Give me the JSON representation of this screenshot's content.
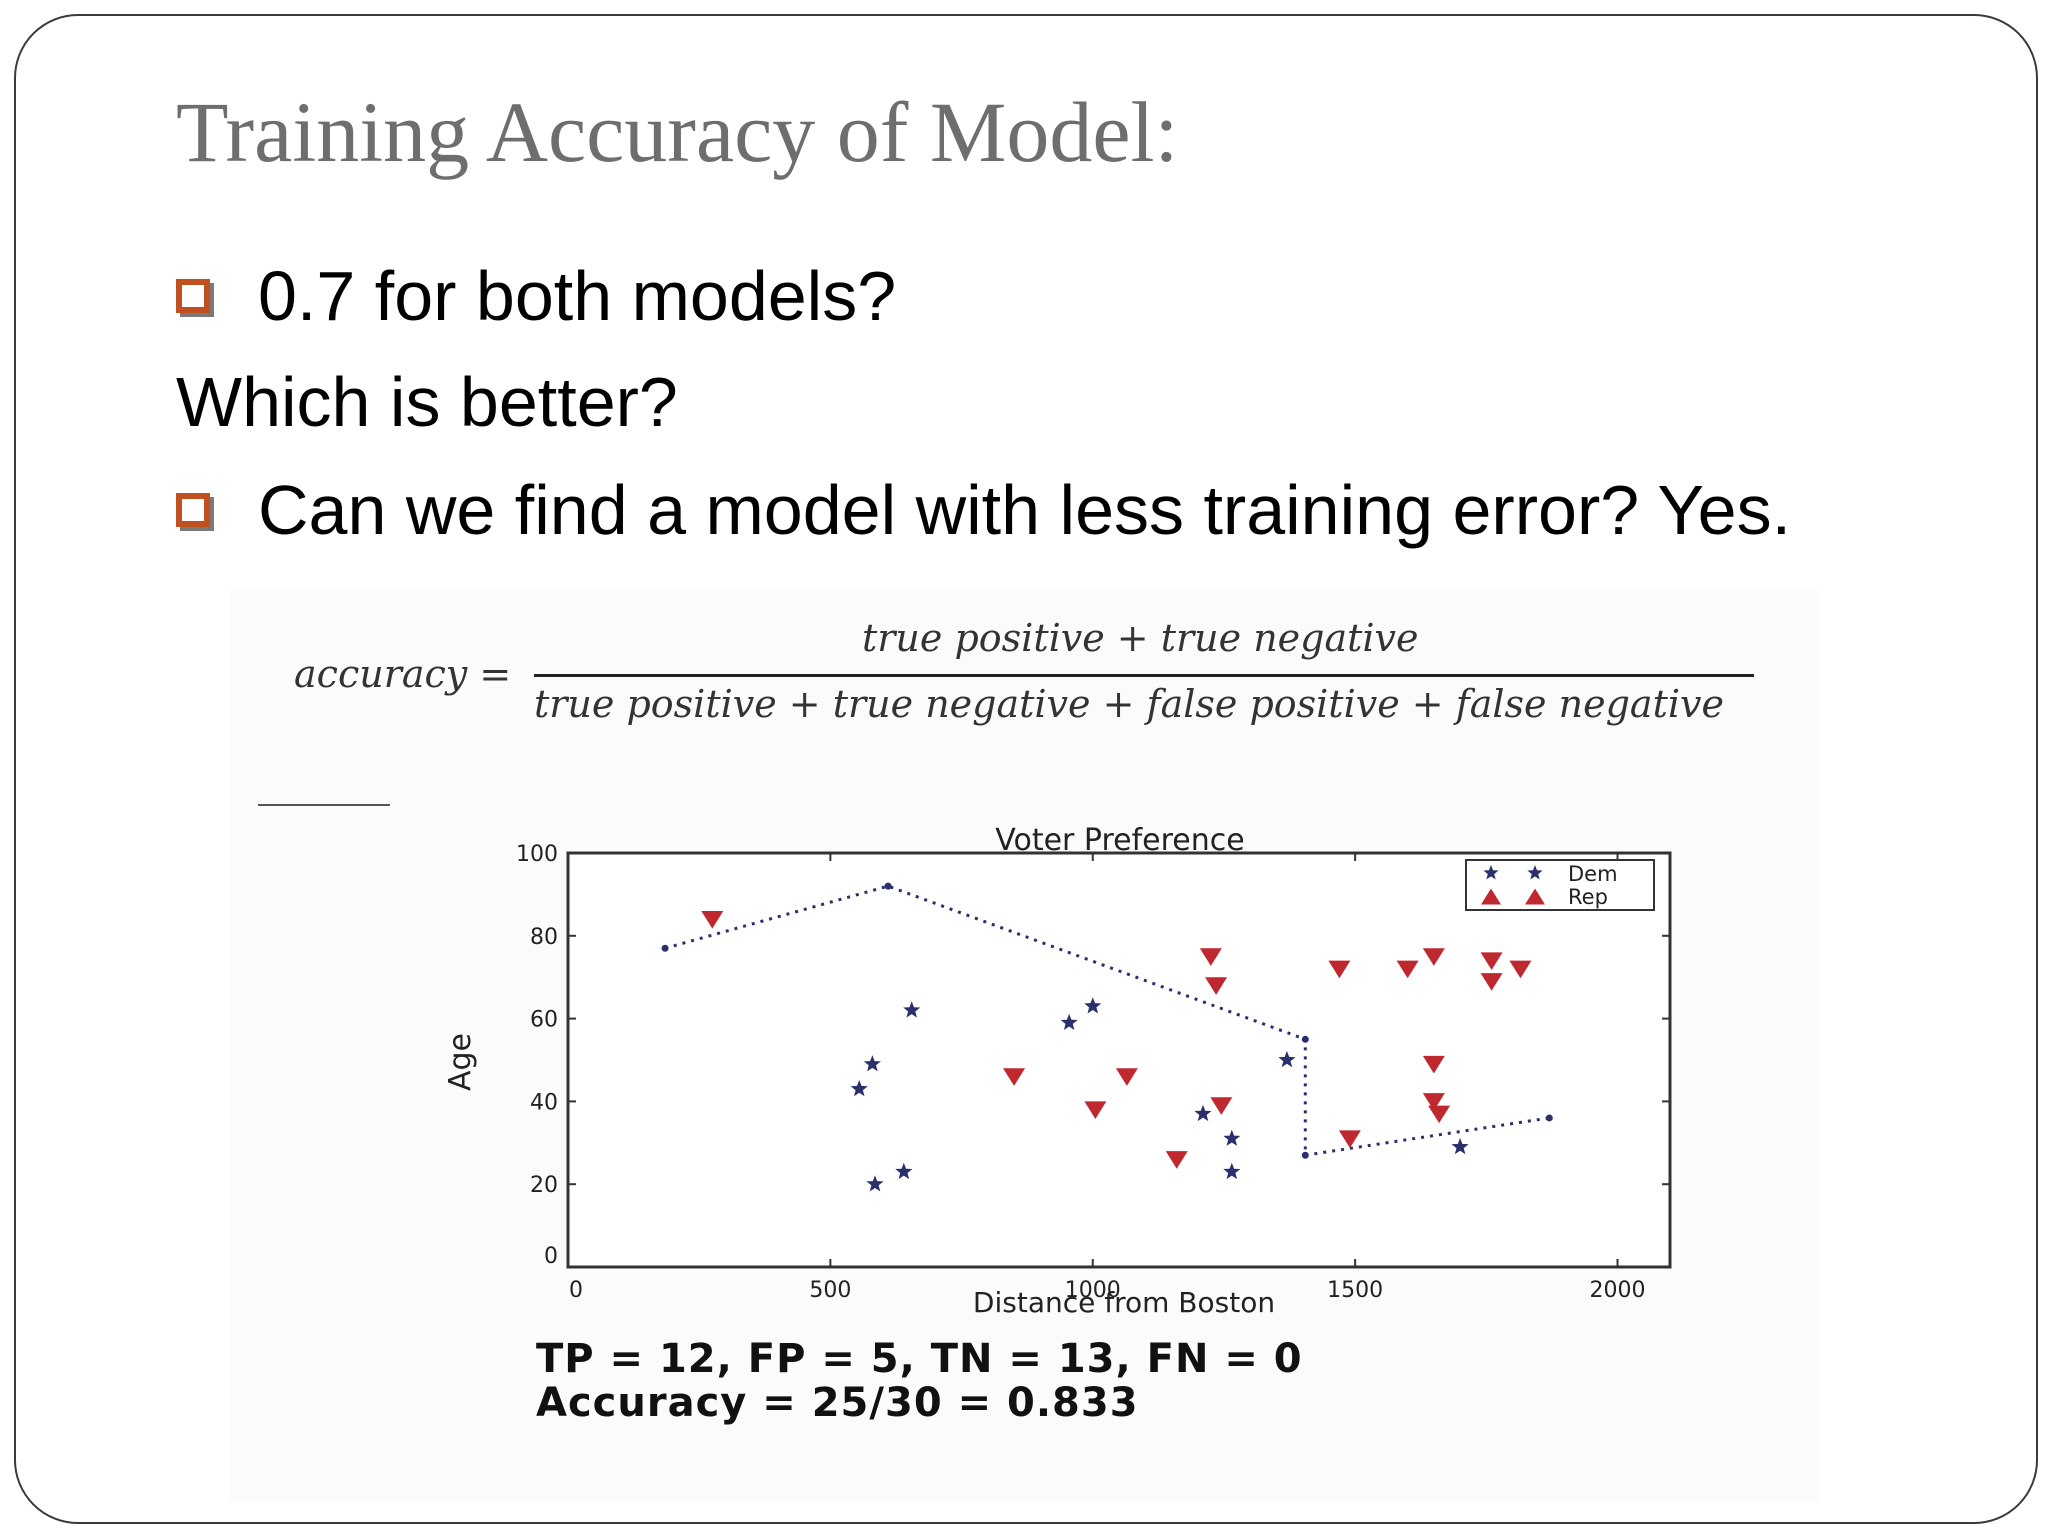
{
  "slide": {
    "title": "Training Accuracy of Model:",
    "bullet1": "0.7 for both models?",
    "line2": "Which is better?",
    "bullet2": "Can we find a model with less training error? Yes."
  },
  "formula": {
    "lhs": "accuracy =",
    "numerator": "true positive + true negative",
    "denominator": "true positive + true negative + false positive + false negative"
  },
  "stats": {
    "line1": "TP = 12, FP = 5, TN = 13, FN = 0",
    "line2": "Accuracy = 25/30 = 0.833"
  },
  "colors": {
    "bullet": "#c0501f",
    "dem": "#2b2f6b",
    "rep": "#c0282f",
    "boundary": "#2b2f6b"
  },
  "chart_data": {
    "type": "scatter",
    "title": "Voter Preference",
    "xlabel": "Distance from Boston",
    "ylabel": "Age",
    "xlim": [
      0,
      2100
    ],
    "ylim": [
      0,
      100
    ],
    "xticks": [
      0,
      500,
      1000,
      1500,
      2000
    ],
    "yticks": [
      0,
      20,
      40,
      60,
      80,
      100
    ],
    "legend_position": "top-right",
    "series": [
      {
        "name": "Dem",
        "marker": "star",
        "color": "#2b2f6b",
        "points": [
          [
            555,
            43
          ],
          [
            580,
            49
          ],
          [
            585,
            20
          ],
          [
            640,
            23
          ],
          [
            655,
            62
          ],
          [
            955,
            59
          ],
          [
            1000,
            63
          ],
          [
            1210,
            37
          ],
          [
            1265,
            31
          ],
          [
            1265,
            23
          ],
          [
            1370,
            50
          ],
          [
            1700,
            29
          ]
        ]
      },
      {
        "name": "Rep",
        "marker": "triangle-down",
        "color": "#c0282f",
        "points": [
          [
            275,
            84
          ],
          [
            850,
            46
          ],
          [
            1005,
            38
          ],
          [
            1065,
            46
          ],
          [
            1160,
            26
          ],
          [
            1225,
            75
          ],
          [
            1235,
            68
          ],
          [
            1245,
            39
          ],
          [
            1470,
            72
          ],
          [
            1490,
            31
          ],
          [
            1600,
            72
          ],
          [
            1650,
            75
          ],
          [
            1650,
            49
          ],
          [
            1650,
            40
          ],
          [
            1660,
            37
          ],
          [
            1760,
            74
          ],
          [
            1760,
            69
          ],
          [
            1815,
            72
          ]
        ]
      }
    ],
    "boundary": {
      "style": "dotted",
      "points": [
        [
          185,
          77
        ],
        [
          610,
          92
        ],
        [
          1405,
          55
        ],
        [
          1405,
          27
        ],
        [
          1870,
          36
        ]
      ]
    }
  }
}
